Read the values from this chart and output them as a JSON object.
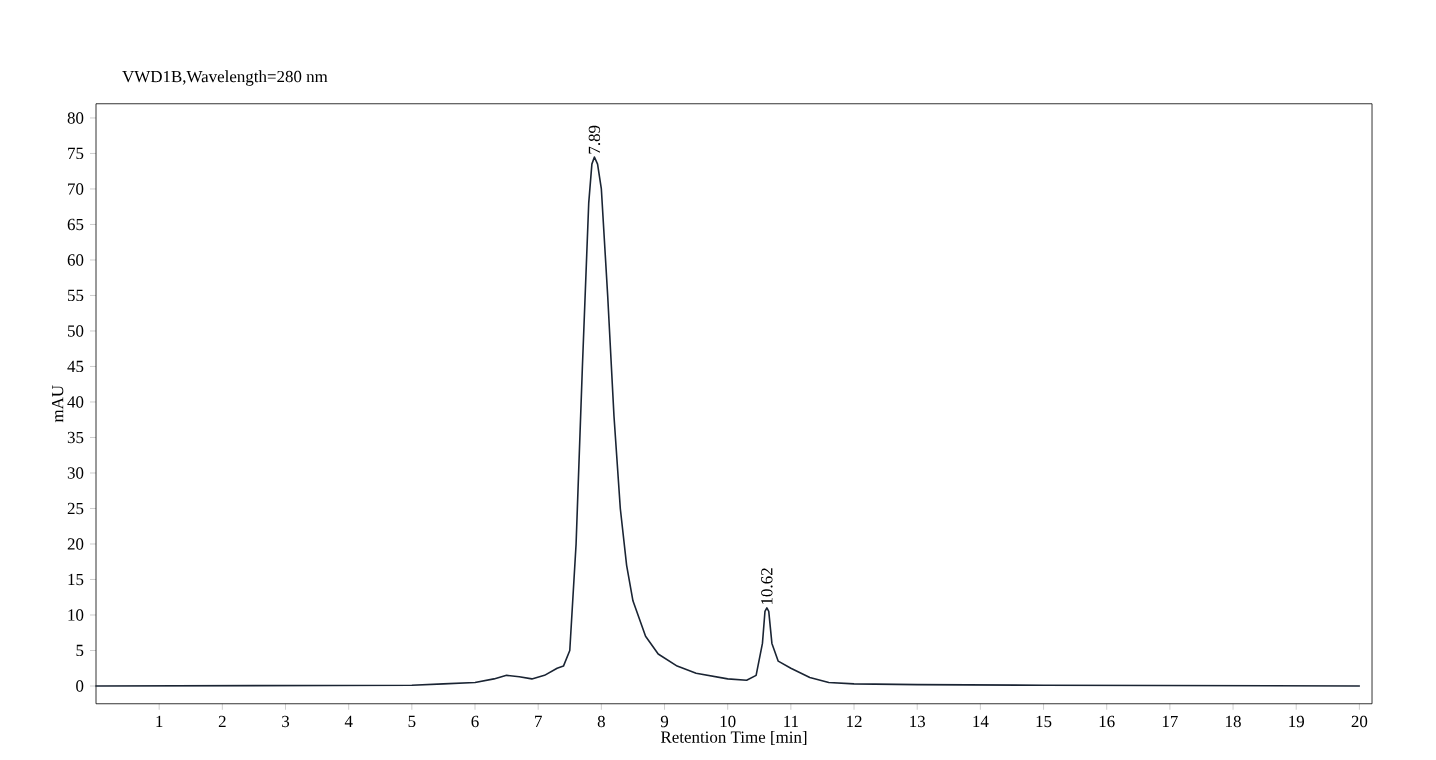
{
  "chart_data": {
    "type": "line",
    "title": "VWD1B,Wavelength=280 nm",
    "xlabel": "Retention Time [min]",
    "ylabel": "mAU",
    "x": [
      0,
      5,
      5.5,
      6,
      6.3,
      6.5,
      6.7,
      6.9,
      7.1,
      7.3,
      7.4,
      7.5,
      7.6,
      7.7,
      7.8,
      7.85,
      7.89,
      7.94,
      8.0,
      8.1,
      8.2,
      8.3,
      8.4,
      8.5,
      8.7,
      8.9,
      9.2,
      9.5,
      10,
      10.3,
      10.45,
      10.55,
      10.59,
      10.62,
      10.65,
      10.7,
      10.8,
      11,
      11.3,
      11.6,
      12,
      13,
      15,
      20
    ],
    "series": [
      {
        "color": "#1a2433",
        "values": [
          0,
          0.1,
          0.3,
          0.5,
          1.0,
          1.5,
          1.3,
          1.0,
          1.5,
          2.5,
          2.8,
          5,
          20,
          45,
          68,
          73.5,
          74.5,
          73.5,
          70,
          55,
          38,
          25,
          17,
          12,
          7,
          4.5,
          2.8,
          1.8,
          1.0,
          0.8,
          1.5,
          6,
          10.5,
          11,
          10.5,
          6,
          3.5,
          2.5,
          1.2,
          0.5,
          0.3,
          0.2,
          0.1,
          0
        ]
      }
    ],
    "xlim": [
      0,
      20.2
    ],
    "ylim": [
      -2.5,
      82
    ],
    "xticks": [
      1,
      2,
      3,
      4,
      5,
      6,
      7,
      8,
      9,
      10,
      11,
      12,
      13,
      14,
      15,
      16,
      17,
      18,
      19,
      20
    ],
    "yticks": [
      0,
      5,
      10,
      15,
      20,
      25,
      30,
      35,
      40,
      45,
      50,
      55,
      60,
      65,
      70,
      75,
      80
    ],
    "annotations": [
      {
        "text": "7.89",
        "x": 7.89,
        "y": 74.5
      },
      {
        "text": "10.62",
        "x": 10.62,
        "y": 11
      }
    ],
    "grid": false,
    "marker": "none",
    "line_style": "solid"
  }
}
